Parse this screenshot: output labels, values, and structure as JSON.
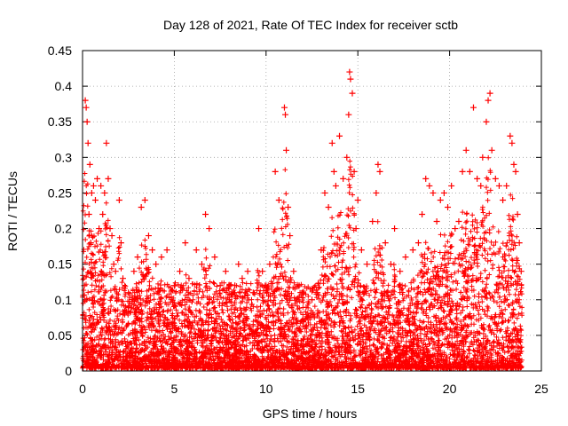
{
  "chart_data": {
    "type": "scatter",
    "title": "Day 128 of 2021, Rate Of TEC Index for receiver sctb",
    "xlabel": "GPS time / hours",
    "ylabel": "ROTI / TECUs",
    "xlim": [
      0,
      25
    ],
    "ylim": [
      0,
      0.45
    ],
    "xticks": [
      "0",
      "5",
      "10",
      "15",
      "20",
      "25"
    ],
    "yticks": [
      "0",
      "0.05",
      "0.1",
      "0.15",
      "0.2",
      "0.25",
      "0.3",
      "0.35",
      "0.4",
      "0.45"
    ],
    "grid": true,
    "marker": "+",
    "color": "#ff0000",
    "series": [
      {
        "points": [
          [
            0.05,
            0.03
          ],
          [
            0.1,
            0.12
          ],
          [
            0.15,
            0.38
          ],
          [
            0.2,
            0.37
          ],
          [
            0.25,
            0.35
          ],
          [
            0.3,
            0.32
          ],
          [
            0.35,
            0.22
          ],
          [
            0.4,
            0.29
          ],
          [
            0.45,
            0.18
          ],
          [
            0.5,
            0.25
          ],
          [
            0.6,
            0.26
          ],
          [
            0.7,
            0.24
          ],
          [
            0.8,
            0.27
          ],
          [
            0.9,
            0.2
          ],
          [
            1.0,
            0.26
          ],
          [
            1.1,
            0.22
          ],
          [
            1.2,
            0.25
          ],
          [
            1.3,
            0.32
          ],
          [
            1.4,
            0.27
          ],
          [
            1.5,
            0.2
          ],
          [
            1.6,
            0.19
          ],
          [
            1.7,
            0.15
          ],
          [
            1.8,
            0.14
          ],
          [
            2.0,
            0.24
          ],
          [
            2.1,
            0.18
          ],
          [
            2.2,
            0.13
          ],
          [
            2.5,
            0.11
          ],
          [
            2.8,
            0.14
          ],
          [
            3.0,
            0.16
          ],
          [
            3.2,
            0.23
          ],
          [
            3.4,
            0.24
          ],
          [
            3.6,
            0.19
          ],
          [
            3.8,
            0.17
          ],
          [
            4.0,
            0.15
          ],
          [
            4.3,
            0.16
          ],
          [
            4.6,
            0.17
          ],
          [
            5.0,
            0.12
          ],
          [
            5.3,
            0.14
          ],
          [
            5.6,
            0.18
          ],
          [
            5.8,
            0.13
          ],
          [
            6.2,
            0.17
          ],
          [
            6.5,
            0.15
          ],
          [
            6.7,
            0.22
          ],
          [
            6.9,
            0.2
          ],
          [
            7.2,
            0.16
          ],
          [
            7.5,
            0.12
          ],
          [
            7.8,
            0.14
          ],
          [
            8.0,
            0.1
          ],
          [
            8.3,
            0.12
          ],
          [
            8.5,
            0.15
          ],
          [
            8.7,
            0.13
          ],
          [
            9.0,
            0.14
          ],
          [
            9.3,
            0.11
          ],
          [
            9.6,
            0.2
          ],
          [
            9.8,
            0.14
          ],
          [
            10.2,
            0.15
          ],
          [
            10.5,
            0.28
          ],
          [
            10.7,
            0.24
          ],
          [
            11.0,
            0.37
          ],
          [
            11.05,
            0.36
          ],
          [
            11.1,
            0.31
          ],
          [
            11.2,
            0.23
          ],
          [
            11.3,
            0.19
          ],
          [
            11.5,
            0.14
          ],
          [
            11.8,
            0.12
          ],
          [
            12.0,
            0.11
          ],
          [
            12.5,
            0.1
          ],
          [
            12.8,
            0.11
          ],
          [
            13.0,
            0.17
          ],
          [
            13.2,
            0.25
          ],
          [
            13.4,
            0.23
          ],
          [
            13.6,
            0.32
          ],
          [
            13.7,
            0.28
          ],
          [
            13.8,
            0.26
          ],
          [
            14.0,
            0.33
          ],
          [
            14.2,
            0.27
          ],
          [
            14.4,
            0.3
          ],
          [
            14.5,
            0.36
          ],
          [
            14.55,
            0.42
          ],
          [
            14.6,
            0.41
          ],
          [
            14.7,
            0.39
          ],
          [
            14.8,
            0.28
          ],
          [
            14.9,
            0.2
          ],
          [
            15.0,
            0.24
          ],
          [
            15.2,
            0.17
          ],
          [
            15.5,
            0.15
          ],
          [
            15.8,
            0.21
          ],
          [
            16.0,
            0.25
          ],
          [
            16.1,
            0.29
          ],
          [
            16.2,
            0.28
          ],
          [
            16.5,
            0.18
          ],
          [
            16.8,
            0.15
          ],
          [
            17.0,
            0.2
          ],
          [
            17.3,
            0.14
          ],
          [
            17.6,
            0.16
          ],
          [
            18.0,
            0.17
          ],
          [
            18.3,
            0.18
          ],
          [
            18.5,
            0.22
          ],
          [
            18.7,
            0.27
          ],
          [
            18.9,
            0.26
          ],
          [
            19.1,
            0.25
          ],
          [
            19.3,
            0.21
          ],
          [
            19.5,
            0.24
          ],
          [
            19.7,
            0.25
          ],
          [
            19.9,
            0.23
          ],
          [
            20.1,
            0.26
          ],
          [
            20.3,
            0.2
          ],
          [
            20.5,
            0.21
          ],
          [
            20.7,
            0.28
          ],
          [
            20.9,
            0.31
          ],
          [
            21.1,
            0.28
          ],
          [
            21.3,
            0.37
          ],
          [
            21.5,
            0.27
          ],
          [
            21.7,
            0.26
          ],
          [
            21.8,
            0.3
          ],
          [
            22.0,
            0.35
          ],
          [
            22.1,
            0.38
          ],
          [
            22.2,
            0.39
          ],
          [
            22.3,
            0.31
          ],
          [
            22.5,
            0.27
          ],
          [
            22.7,
            0.26
          ],
          [
            22.9,
            0.24
          ],
          [
            23.1,
            0.26
          ],
          [
            23.3,
            0.33
          ],
          [
            23.4,
            0.32
          ],
          [
            23.5,
            0.29
          ],
          [
            23.6,
            0.28
          ],
          [
            23.7,
            0.22
          ],
          [
            23.8,
            0.18
          ],
          [
            23.9,
            0.14
          ]
        ]
      }
    ]
  }
}
